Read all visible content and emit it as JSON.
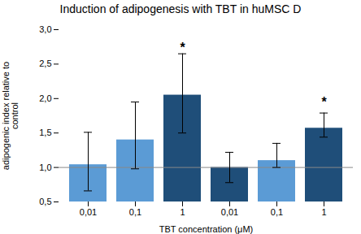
{
  "chart_data": {
    "type": "bar",
    "title": "Induction of adipogenesis with TBT in huMSC D",
    "xlabel": "TBT concentration (μM)",
    "ylabel": "adipogenic index relative to\ncontrol",
    "categories": [
      "0,01",
      "0,1",
      "1",
      "0,01",
      "0,1",
      "1"
    ],
    "values": [
      1.04,
      1.4,
      2.05,
      1.0,
      1.1,
      1.57
    ],
    "errors_low": [
      0.38,
      0.42,
      0.55,
      0.22,
      0.1,
      0.13
    ],
    "errors_high": [
      0.47,
      0.55,
      0.6,
      0.22,
      0.25,
      0.22
    ],
    "colors": [
      "#5B9BD5",
      "#5B9BD5",
      "#1F4E79",
      "#1F4E79",
      "#5B9BD5",
      "#1F4E79"
    ],
    "hline": 1.0,
    "annotations": [
      {
        "text": "*",
        "x": 2,
        "y": 2.68
      },
      {
        "text": "*",
        "x": 5,
        "y": 1.88
      }
    ],
    "ylim": [
      0.5,
      3.0
    ],
    "yticks": [
      {
        "value": 0.5,
        "label": "0,5"
      },
      {
        "value": 1.0,
        "label": "1,0"
      },
      {
        "value": 1.5,
        "label": "1,5"
      },
      {
        "value": 2.0,
        "label": "2,0"
      },
      {
        "value": 2.5,
        "label": "2,5"
      },
      {
        "value": 3.0,
        "label": "3,0"
      }
    ]
  }
}
